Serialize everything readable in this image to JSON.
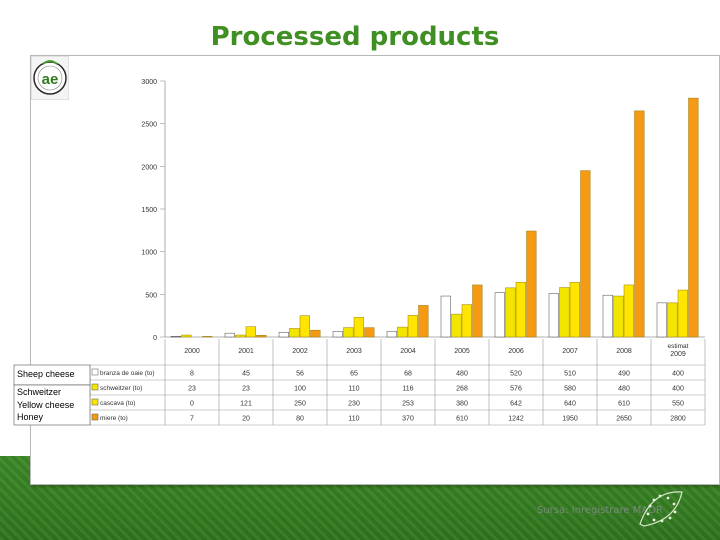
{
  "page": {
    "title": "Processed products"
  },
  "source": "Sursa: Inregistrare MADR",
  "logo": {
    "text": "ae"
  },
  "row_labels": [
    "Sheep cheese",
    "Schweitzer",
    "Yellow cheese",
    "Honey"
  ],
  "colors": {
    "title": "#3f8f22",
    "s1": "#ffffff",
    "s2": "#f2e600",
    "s3": "#ffe500",
    "s4": "#f59a12"
  },
  "chart_data": {
    "type": "bar",
    "categories": [
      "2000",
      "2001",
      "2002",
      "2003",
      "2004",
      "2005",
      "2006",
      "2007",
      "2008",
      "estimat 2009"
    ],
    "ylim": [
      0,
      3000
    ],
    "yticks": [
      0,
      500,
      1000,
      1500,
      2000,
      2500,
      3000
    ],
    "ytick_labels": [
      "0",
      "500",
      "1000",
      "1500",
      "2000",
      "2500",
      "3000"
    ],
    "table_headers": [
      "branza de oaie (to)",
      "schweitzer (to)",
      "cascava (to)",
      "miere (to)"
    ],
    "series": [
      {
        "name": "branza de oaie (to)",
        "values": [
          8,
          45,
          56,
          65,
          68,
          480,
          520,
          510,
          490,
          400
        ]
      },
      {
        "name": "schweitzer (to)",
        "values": [
          23,
          23,
          100,
          110,
          116,
          268,
          576,
          580,
          480,
          400
        ]
      },
      {
        "name": "cascava (to)",
        "values": [
          0,
          121,
          250,
          230,
          253,
          380,
          642,
          640,
          610,
          550
        ]
      },
      {
        "name": "miere (to)",
        "values": [
          7,
          20,
          80,
          110,
          370,
          610,
          1242,
          1950,
          2650,
          2800
        ]
      }
    ],
    "cell_labels": [
      [
        "8",
        "45",
        "56",
        "65",
        "68",
        "480",
        "520",
        "510",
        "490",
        "400"
      ],
      [
        "23",
        "23",
        "100",
        "110",
        "116",
        "268",
        "576",
        "580",
        "480",
        "400"
      ],
      [
        "0",
        "121",
        "250",
        "230",
        "253",
        "380",
        "642",
        "640",
        "610",
        "550"
      ],
      [
        "7",
        "20",
        "80",
        "110",
        "370",
        "610",
        "1242",
        "1950",
        "2650",
        "2800"
      ]
    ],
    "grid": false,
    "legend": "table-left"
  }
}
